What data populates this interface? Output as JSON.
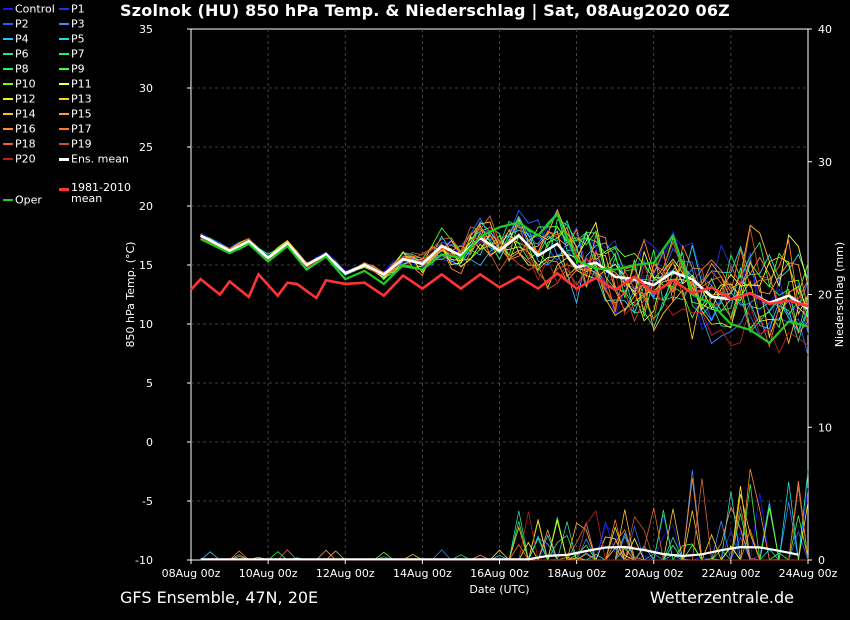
{
  "title": "Szolnok  (HU)  850 hPa Temp. & Niederschlag | Sat, 08Aug2020 06Z",
  "footer_left": "GFS Ensemble, 47N, 20E",
  "footer_right": "Wetterzentrale.de",
  "legend": [
    {
      "label": "Control",
      "color": "#1a1aff"
    },
    {
      "label": "P1",
      "color": "#2233dd"
    },
    {
      "label": "P2",
      "color": "#2a5fff"
    },
    {
      "label": "P3",
      "color": "#3b8cff"
    },
    {
      "label": "P4",
      "color": "#33bbff"
    },
    {
      "label": "P5",
      "color": "#22dddd"
    },
    {
      "label": "P6",
      "color": "#22ddaa"
    },
    {
      "label": "P7",
      "color": "#22ee77"
    },
    {
      "label": "P8",
      "color": "#33ee55"
    },
    {
      "label": "P9",
      "color": "#44ff33"
    },
    {
      "label": "P10",
      "color": "#66ff22"
    },
    {
      "label": "P11",
      "color": "#ffff44"
    },
    {
      "label": "P12",
      "color": "#eeee22"
    },
    {
      "label": "P13",
      "color": "#ffcc22"
    },
    {
      "label": "P14",
      "color": "#ffbb33"
    },
    {
      "label": "P15",
      "color": "#ff9944"
    },
    {
      "label": "P16",
      "color": "#ff8833"
    },
    {
      "label": "P17",
      "color": "#ff7722"
    },
    {
      "label": "P18",
      "color": "#dd6633"
    },
    {
      "label": "P19",
      "color": "#cc5522"
    },
    {
      "label": "P20",
      "color": "#bb2222"
    },
    {
      "label": "Ens. mean",
      "color": "#ffffff"
    },
    {
      "label": "Oper",
      "color": "#22cc22"
    },
    {
      "label": "1981-2010 mean",
      "color": "#ff3333"
    }
  ],
  "chart_data": {
    "type": "line",
    "xlabel": "Date (UTC)",
    "ylabel": "850 hPa Temp. (°C)",
    "ylabel_right": "Niederschlag (mm)",
    "ylim": [
      -10,
      35
    ],
    "ylim_right": [
      0,
      40
    ],
    "yticks": [
      "35",
      "30",
      "25",
      "20",
      "15",
      "10",
      "5",
      "0",
      "-5",
      "-10"
    ],
    "yticks_right": [
      "40",
      "30",
      "20",
      "10",
      "0"
    ],
    "xticks": [
      "08Aug 00z",
      "10Aug 00z",
      "12Aug 00z",
      "14Aug 00z",
      "16Aug 00z",
      "18Aug 00z",
      "20Aug 00z",
      "22Aug 00z",
      "24Aug 00z"
    ],
    "x_hours_range": [
      0,
      384
    ],
    "grid": true,
    "series": [
      {
        "name": "Ens. mean",
        "color": "#ffffff",
        "x_hours": [
          6,
          24,
          36,
          48,
          60,
          72,
          84,
          96,
          108,
          120,
          132,
          144,
          156,
          168,
          180,
          192,
          204,
          216,
          228,
          240,
          252,
          264,
          276,
          288,
          300,
          312,
          324,
          336,
          348,
          360,
          372,
          384
        ],
        "values": [
          17.5,
          16.2,
          17.0,
          15.6,
          16.8,
          15.0,
          15.9,
          14.3,
          15.0,
          14.2,
          15.5,
          15.1,
          16.6,
          15.8,
          17.3,
          16.2,
          17.5,
          15.8,
          16.8,
          14.8,
          15.2,
          14.0,
          13.8,
          13.3,
          14.4,
          13.8,
          12.3,
          12.1,
          12.6,
          11.8,
          12.4,
          11.3
        ]
      },
      {
        "name": "Oper",
        "color": "#22cc22",
        "x_hours": [
          6,
          24,
          36,
          48,
          60,
          72,
          84,
          96,
          108,
          120,
          132,
          144,
          156,
          168,
          180,
          192,
          204,
          216,
          228,
          240,
          252,
          264,
          276,
          288,
          300,
          312,
          324,
          336,
          348,
          360,
          372,
          384
        ],
        "values": [
          17.2,
          16.0,
          16.8,
          15.3,
          16.6,
          14.6,
          15.7,
          13.8,
          14.5,
          13.4,
          15.0,
          14.6,
          15.9,
          15.6,
          17.4,
          18.2,
          18.6,
          17.5,
          19.3,
          15.4,
          14.7,
          14.6,
          15.0,
          15.2,
          17.5,
          12.5,
          11.7,
          10.0,
          9.5,
          8.4,
          10.2,
          9.8
        ]
      },
      {
        "name": "1981-2010 mean",
        "color": "#ff3333",
        "x_hours": [
          0,
          6,
          18,
          24,
          36,
          42,
          54,
          60,
          66,
          78,
          84,
          96,
          108,
          120,
          132,
          144,
          156,
          168,
          180,
          192,
          204,
          216,
          228,
          240,
          252,
          264,
          276,
          288,
          300,
          312,
          324,
          336,
          348,
          360,
          372,
          384
        ],
        "values": [
          12.9,
          13.8,
          12.5,
          13.6,
          12.3,
          14.2,
          12.4,
          13.5,
          13.4,
          12.2,
          13.7,
          13.4,
          13.5,
          12.4,
          14.1,
          13.0,
          14.2,
          13.0,
          14.2,
          13.1,
          14.0,
          13.0,
          14.3,
          13.0,
          13.9,
          12.9,
          14.0,
          12.6,
          13.7,
          12.6,
          13.1,
          12.1,
          12.6,
          11.7,
          12.0,
          11.5
        ]
      }
    ]
  }
}
